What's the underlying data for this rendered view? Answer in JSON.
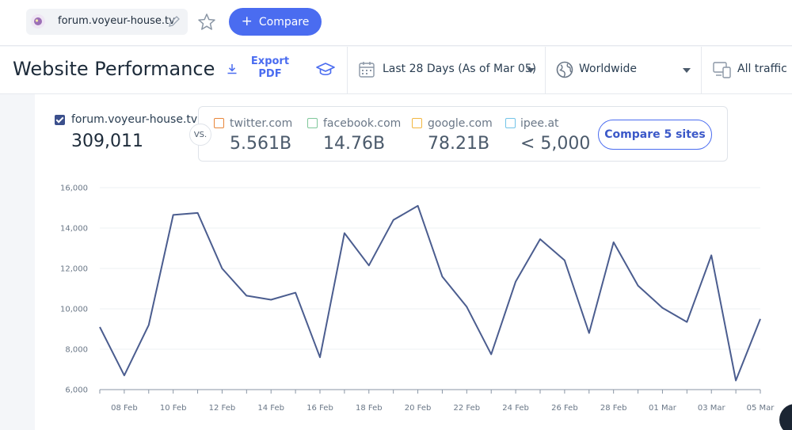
{
  "topbar": {
    "site_name": "forum.voyeur-house.tv",
    "compare_label": "Compare",
    "icons": [
      "site-favicon-icon",
      "pencil-icon",
      "star-icon",
      "plus-icon"
    ]
  },
  "header": {
    "title": "Website Performance",
    "export_label": "Export PDF",
    "date_range": "Last 28 Days (As of Mar 05)",
    "geo": "Worldwide",
    "traffic": "All traffic",
    "icons": [
      "download-icon",
      "graduation-cap-icon",
      "calendar-icon",
      "globe-icon",
      "devices-icon",
      "chevron-down-icon"
    ]
  },
  "main_site": {
    "domain": "forum.voyeur-house.tv",
    "value": "309,011",
    "checked": true,
    "color": "#3b4f8c"
  },
  "vs_label": "VS.",
  "competitors": [
    {
      "domain": "twitter.com",
      "value": "5.561B",
      "color": "#e8863a"
    },
    {
      "domain": "facebook.com",
      "value": "14.76B",
      "color": "#7fc79a"
    },
    {
      "domain": "google.com",
      "value": "78.21B",
      "color": "#f2b740"
    },
    {
      "domain": "ipee.at",
      "value": "< 5,000",
      "color": "#72c4e8"
    }
  ],
  "compare_sites_label": "Compare 5 sites",
  "chart_data": {
    "type": "line",
    "title": "",
    "xlabel": "",
    "ylabel": "",
    "ylim": [
      6000,
      16000
    ],
    "yticks": [
      6000,
      8000,
      10000,
      12000,
      14000,
      16000
    ],
    "ytick_labels": [
      "6,000",
      "8,000",
      "10,000",
      "12,000",
      "14,000",
      "16,000"
    ],
    "x": [
      "07 Feb",
      "08 Feb",
      "09 Feb",
      "10 Feb",
      "11 Feb",
      "12 Feb",
      "13 Feb",
      "14 Feb",
      "15 Feb",
      "16 Feb",
      "17 Feb",
      "18 Feb",
      "19 Feb",
      "20 Feb",
      "21 Feb",
      "22 Feb",
      "23 Feb",
      "24 Feb",
      "25 Feb",
      "26 Feb",
      "27 Feb",
      "28 Feb",
      "29 Feb",
      "01 Mar",
      "02 Mar",
      "03 Mar",
      "04 Mar",
      "05 Mar"
    ],
    "xtick_labels": [
      "08 Feb",
      "10 Feb",
      "12 Feb",
      "14 Feb",
      "16 Feb",
      "18 Feb",
      "20 Feb",
      "22 Feb",
      "24 Feb",
      "26 Feb",
      "28 Feb",
      "01 Mar",
      "03 Mar",
      "05 Mar"
    ],
    "series": [
      {
        "values": [
          9100,
          6700,
          9200,
          14650,
          14750,
          12000,
          10650,
          10450,
          10800,
          7600,
          13750,
          12150,
          14400,
          15100,
          11600,
          10100,
          7750,
          11350,
          13450,
          12400,
          8800,
          13300,
          11150,
          10050,
          9350,
          12650,
          6450,
          9500
        ],
        "color": "#4b5d8f"
      }
    ],
    "grid": true,
    "legend": "none"
  }
}
